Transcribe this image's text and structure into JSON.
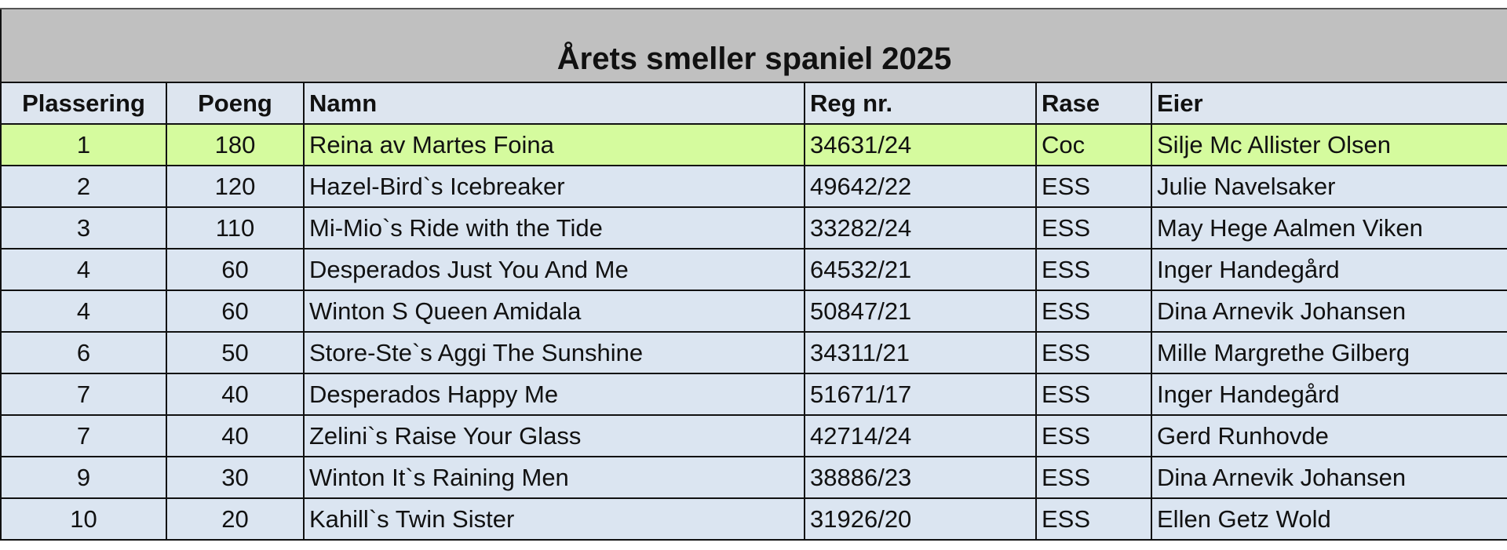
{
  "title": "Årets smeller spaniel 2025",
  "table": {
    "header": [
      "Plassering",
      "Poeng",
      "Namn",
      "Reg nr.",
      "Rase",
      "Eier"
    ],
    "rows": [
      [
        1,
        180,
        "Reina av Martes Foina",
        "34631/24",
        "Coc",
        "Silje Mc Allister Olsen"
      ],
      [
        2,
        120,
        "Hazel-Bird`s Icebreaker",
        "49642/22",
        "ESS",
        "Julie Navelsaker"
      ],
      [
        3,
        110,
        "Mi-Mio`s Ride with the Tide",
        "33282/24",
        "ESS",
        "May Hege Aalmen Viken"
      ],
      [
        4,
        60,
        "Desperados Just You And Me",
        "64532/21",
        "ESS",
        "Inger Handegård"
      ],
      [
        4,
        60,
        "Winton S Queen Amidala",
        "50847/21",
        "ESS",
        "Dina Arnevik Johansen"
      ],
      [
        6,
        50,
        "Store-Ste`s Aggi The Sunshine",
        "34311/21",
        "ESS",
        "Mille Margrethe Gilberg"
      ],
      [
        7,
        40,
        "Desperados Happy Me",
        "51671/17",
        "ESS",
        "Inger Handegård"
      ],
      [
        7,
        40,
        "Zelini`s Raise Your Glass",
        "42714/24",
        "ESS",
        "Gerd Runhovde"
      ],
      [
        9,
        30,
        "Winton It`s Raining Men",
        "38886/23",
        "ESS",
        "Dina Arnevik Johansen"
      ],
      [
        10,
        20,
        "Kahill`s Twin Sister",
        "31926/20",
        "ESS",
        "Ellen Getz Wold"
      ]
    ]
  }
}
